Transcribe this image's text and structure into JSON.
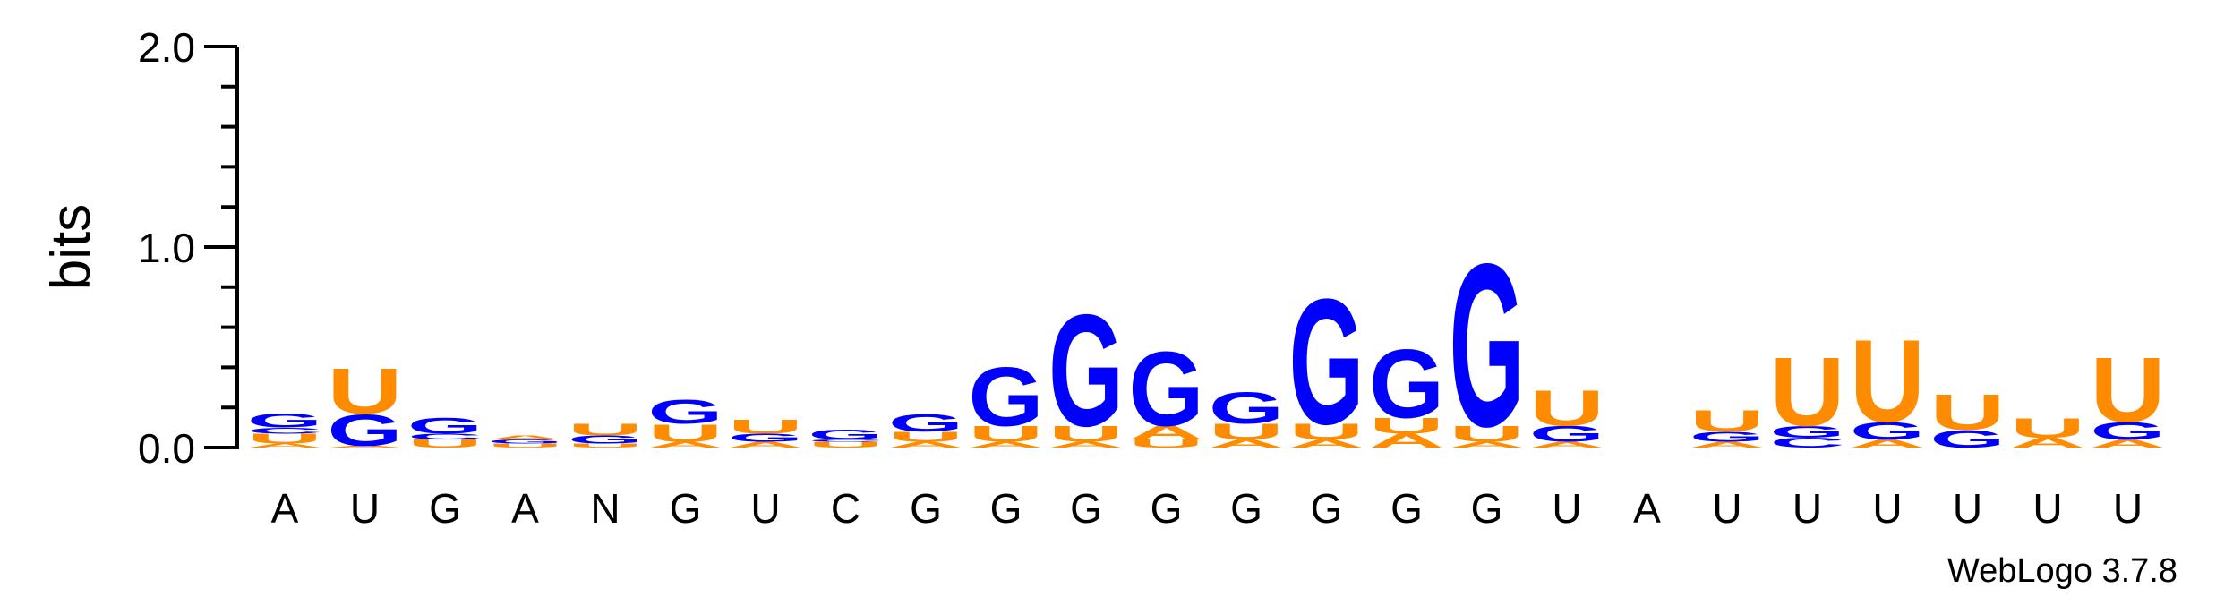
{
  "chart_data": {
    "type": "sequence-logo",
    "ylabel": "bits",
    "ylim": [
      0,
      2.0
    ],
    "yticks": [
      "0.0",
      "1.0",
      "2.0"
    ],
    "positions": [
      "A",
      "U",
      "G",
      "A",
      "N",
      "G",
      "U",
      "C",
      "G",
      "G",
      "G",
      "G",
      "G",
      "G",
      "G",
      "G",
      "U",
      "A",
      "U",
      "U",
      "U",
      "U",
      "U",
      "U"
    ],
    "stacks": [
      [
        {
          "base": "A",
          "bits": 0.02
        },
        {
          "base": "U",
          "bits": 0.05
        },
        {
          "base": "C",
          "bits": 0.03
        },
        {
          "base": "G",
          "bits": 0.07
        }
      ],
      [
        {
          "base": "A",
          "bits": 0.01
        },
        {
          "base": "G",
          "bits": 0.16
        },
        {
          "base": "U",
          "bits": 0.23
        }
      ],
      [
        {
          "base": "U",
          "bits": 0.04
        },
        {
          "base": "C",
          "bits": 0.03
        },
        {
          "base": "G",
          "bits": 0.08
        }
      ],
      [
        {
          "base": "U",
          "bits": 0.02
        },
        {
          "base": "G",
          "bits": 0.02
        },
        {
          "base": "A",
          "bits": 0.02
        }
      ],
      [
        {
          "base": "U",
          "bits": 0.02
        },
        {
          "base": "G",
          "bits": 0.04
        },
        {
          "base": "U",
          "bits": 0.06
        }
      ],
      [
        {
          "base": "A",
          "bits": 0.03
        },
        {
          "base": "U",
          "bits": 0.09
        },
        {
          "base": "G",
          "bits": 0.12
        }
      ],
      [
        {
          "base": "A",
          "bits": 0.03
        },
        {
          "base": "G",
          "bits": 0.04
        },
        {
          "base": "U",
          "bits": 0.07
        }
      ],
      [
        {
          "base": "U",
          "bits": 0.03
        },
        {
          "base": "C",
          "bits": 0.01
        },
        {
          "base": "G",
          "bits": 0.05
        }
      ],
      [
        {
          "base": "A",
          "bits": 0.03
        },
        {
          "base": "U",
          "bits": 0.05
        },
        {
          "base": "G",
          "bits": 0.09
        }
      ],
      [
        {
          "base": "A",
          "bits": 0.03
        },
        {
          "base": "U",
          "bits": 0.08
        },
        {
          "base": "G",
          "bits": 0.3
        }
      ],
      [
        {
          "base": "A",
          "bits": 0.03
        },
        {
          "base": "U",
          "bits": 0.08
        },
        {
          "base": "G",
          "bits": 0.57
        }
      ],
      [
        {
          "base": "U",
          "bits": 0.04
        },
        {
          "base": "A",
          "bits": 0.07
        },
        {
          "base": "G",
          "bits": 0.38
        }
      ],
      [
        {
          "base": "A",
          "bits": 0.04
        },
        {
          "base": "U",
          "bits": 0.08
        },
        {
          "base": "G",
          "bits": 0.16
        }
      ],
      [
        {
          "base": "A",
          "bits": 0.04
        },
        {
          "base": "U",
          "bits": 0.08
        },
        {
          "base": "G",
          "bits": 0.64
        }
      ],
      [
        {
          "base": "A",
          "bits": 0.07
        },
        {
          "base": "U",
          "bits": 0.08
        },
        {
          "base": "G",
          "bits": 0.35
        }
      ],
      [
        {
          "base": "A",
          "bits": 0.03
        },
        {
          "base": "U",
          "bits": 0.08
        },
        {
          "base": "G",
          "bits": 0.83
        }
      ],
      [
        {
          "base": "A",
          "bits": 0.03
        },
        {
          "base": "G",
          "bits": 0.08
        },
        {
          "base": "U",
          "bits": 0.18
        }
      ],
      [],
      [
        {
          "base": "A",
          "bits": 0.03
        },
        {
          "base": "G",
          "bits": 0.05
        },
        {
          "base": "U",
          "bits": 0.11
        }
      ],
      [
        {
          "base": "C",
          "bits": 0.05
        },
        {
          "base": "G",
          "bits": 0.06
        },
        {
          "base": "U",
          "bits": 0.35
        }
      ],
      [
        {
          "base": "A",
          "bits": 0.04
        },
        {
          "base": "G",
          "bits": 0.09
        },
        {
          "base": "U",
          "bits": 0.42
        }
      ],
      [
        {
          "base": "G",
          "bits": 0.09
        },
        {
          "base": "U",
          "bits": 0.18
        }
      ],
      [
        {
          "base": "A",
          "bits": 0.05
        },
        {
          "base": "U",
          "bits": 0.1
        }
      ],
      [
        {
          "base": "A",
          "bits": 0.04
        },
        {
          "base": "G",
          "bits": 0.09
        },
        {
          "base": "U",
          "bits": 0.33
        }
      ]
    ],
    "colors": {
      "A": "#ff8c00",
      "G": "#0000ff",
      "U": "#ff8c00",
      "C": "#0000ff"
    }
  },
  "branding": {
    "text": "WebLogo 3.7.8"
  }
}
